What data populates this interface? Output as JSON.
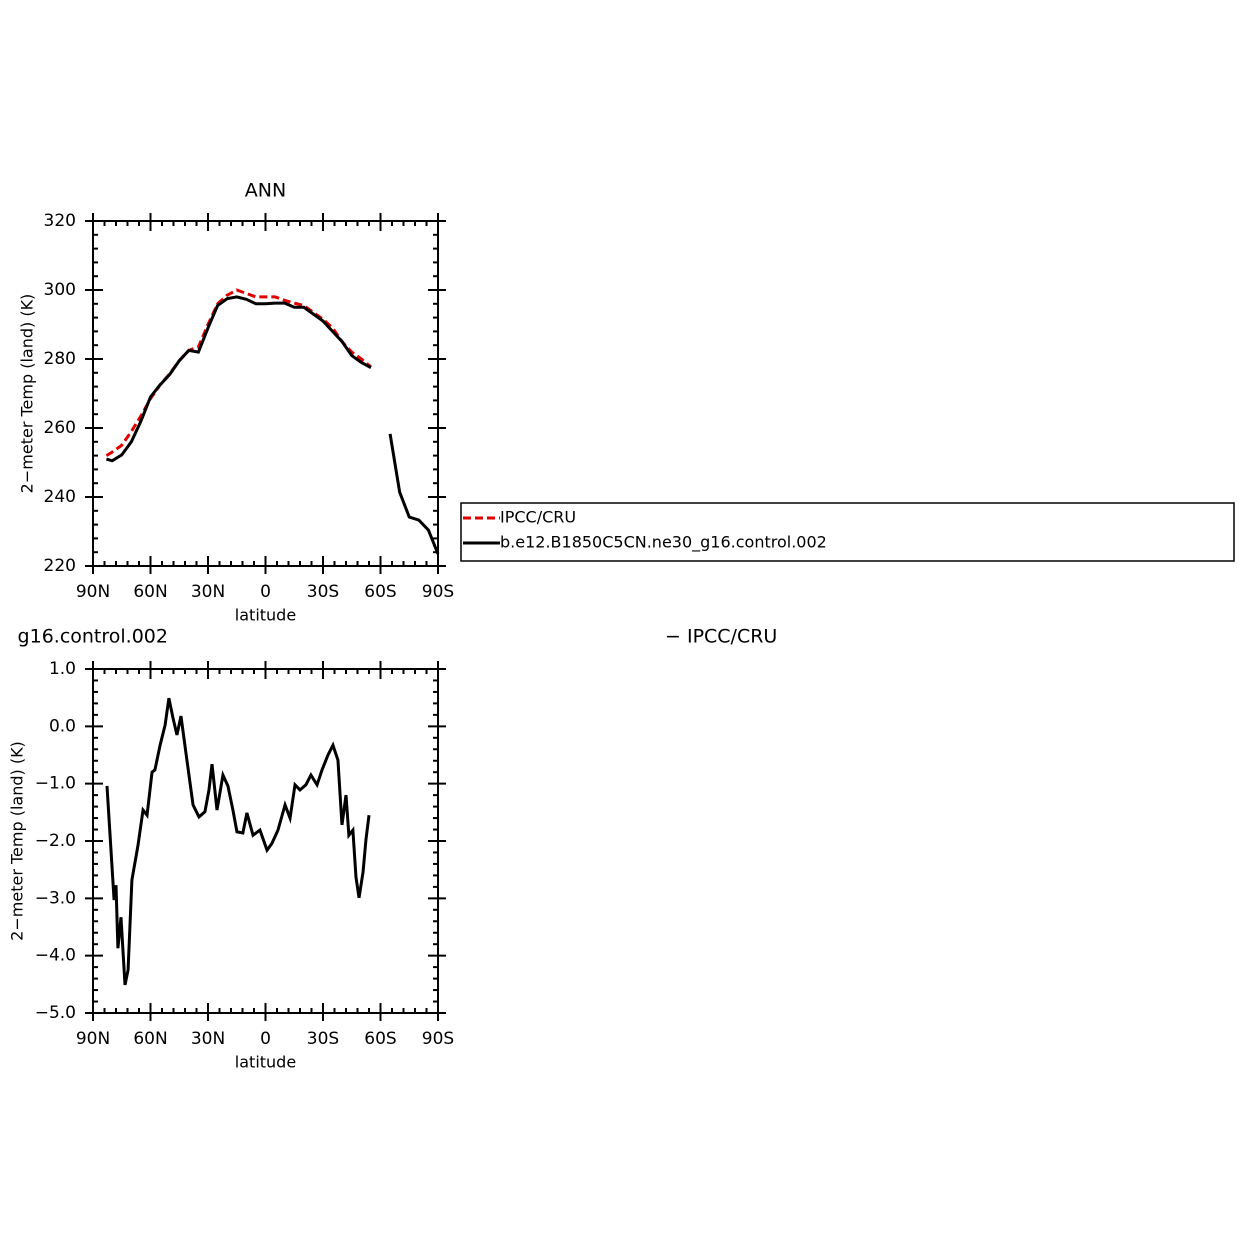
{
  "chart_data": [
    {
      "type": "line",
      "title": "ANN",
      "xlabel": "latitude",
      "ylabel": "2−meter Temp (land) (K)",
      "x": [
        83,
        80,
        75,
        70,
        65,
        60,
        55,
        50,
        45,
        40,
        35,
        30,
        25,
        20,
        15,
        10,
        5,
        0,
        -5,
        -10,
        -15,
        -20,
        -25,
        -30,
        -35,
        -40,
        -45,
        -50,
        -55,
        -60,
        -65,
        -70,
        -75,
        -80,
        -85,
        -90
      ],
      "series": [
        {
          "name": "IPCC/CRU",
          "color": "#e00000",
          "line_style": "dashed",
          "values": [
            252,
            253,
            255,
            259,
            263.5,
            268.5,
            272.5,
            275.7,
            279.5,
            282.5,
            283.5,
            290,
            296,
            298.5,
            300,
            299,
            298,
            298,
            298,
            297,
            296.2,
            295.5,
            293.5,
            291.5,
            289,
            285,
            282,
            280,
            277.7,
            null,
            null,
            null,
            null,
            null,
            null,
            null
          ]
        },
        {
          "name": "b.e12.B1850C5CN.ne30_g16.control.002",
          "color": "#000000",
          "line_style": "solid",
          "values": [
            251,
            250.5,
            252.2,
            256,
            262,
            269,
            272.5,
            275.5,
            279.5,
            282.5,
            282,
            289,
            295.5,
            297.5,
            298,
            297.3,
            296,
            296,
            296.2,
            296.2,
            295,
            295,
            293,
            291,
            288,
            285,
            281,
            279,
            277.5,
            null,
            258.3,
            241.4,
            234.2,
            233.3,
            230.4,
            223.5
          ]
        }
      ],
      "xlim": [
        90,
        -90
      ],
      "xticks": [
        {
          "value": 90,
          "label": "90N"
        },
        {
          "value": 60,
          "label": "60N"
        },
        {
          "value": 30,
          "label": "30N"
        },
        0,
        {
          "value": -30,
          "label": "30S"
        },
        {
          "value": -60,
          "label": "60S"
        },
        {
          "value": -90,
          "label": "90S"
        }
      ],
      "ylim": [
        220,
        320
      ],
      "yticks": [
        220,
        240,
        260,
        280,
        300,
        320
      ],
      "grid": false
    },
    {
      "type": "line",
      "title_left": "g16.control.002",
      "title_right": "− IPCC/CRU",
      "xlabel": "latitude",
      "ylabel": "2−meter Temp (land) (K)",
      "x": [
        82.7,
        81.1,
        79,
        78,
        77,
        75.4,
        73.3,
        71.7,
        69.7,
        66.5,
        63.9,
        61.8,
        59.2,
        57.7,
        55,
        52.4,
        50.4,
        48.3,
        46.2,
        44.1,
        41,
        37.8,
        34.7,
        31.6,
        29.5,
        27.9,
        25.3,
        22.2,
        19.6,
        17,
        14.9,
        11.8,
        9.7,
        6.5,
        2.9,
        -0.8,
        -3.4,
        -6.5,
        -10.2,
        -12.8,
        -15.4,
        -18,
        -21.1,
        -23.7,
        -26.9,
        -29.5,
        -32.6,
        -35.2,
        -37.8,
        -39.9,
        -42,
        -43.5,
        -45.6,
        -47.2,
        -48.8,
        -50.9,
        -52.4,
        -54
      ],
      "values": [
        -1.04,
        -1.9,
        -3.03,
        -2.77,
        -3.87,
        -3.33,
        -4.51,
        -4.25,
        -2.68,
        -2.07,
        -1.46,
        -1.55,
        -0.8,
        -0.76,
        -0.33,
        0.02,
        0.49,
        0.15,
        -0.15,
        0.18,
        -0.59,
        -1.37,
        -1.58,
        -1.49,
        -1.11,
        -0.66,
        -1.46,
        -0.85,
        -1.04,
        -1.46,
        -1.84,
        -1.86,
        -1.51,
        -1.9,
        -1.81,
        -2.16,
        -2.04,
        -1.81,
        -1.37,
        -1.6,
        -1.02,
        -1.11,
        -1.02,
        -0.85,
        -1.02,
        -0.76,
        -0.5,
        -0.33,
        -0.59,
        -1.72,
        -1.2,
        -1.9,
        -1.81,
        -2.63,
        -2.99,
        -2.54,
        -1.98,
        -1.55
      ],
      "color": "#000000",
      "xlim": [
        90,
        -90
      ],
      "xticks": [
        {
          "value": 90,
          "label": "90N"
        },
        {
          "value": 60,
          "label": "60N"
        },
        {
          "value": 30,
          "label": "30N"
        },
        0,
        {
          "value": -30,
          "label": "30S"
        },
        {
          "value": -60,
          "label": "60S"
        },
        {
          "value": -90,
          "label": "90S"
        }
      ],
      "ylim": [
        -5,
        1
      ],
      "yticks": [
        {
          "value": -5,
          "label": "−5.0"
        },
        {
          "value": -4,
          "label": "−4.0"
        },
        {
          "value": -3,
          "label": "−3.0"
        },
        {
          "value": -2,
          "label": "−2.0"
        },
        {
          "value": -1,
          "label": "−1.0"
        },
        {
          "value": 0,
          "label": "0.0"
        },
        {
          "value": 1,
          "label": "1.0"
        }
      ],
      "grid": false
    }
  ]
}
